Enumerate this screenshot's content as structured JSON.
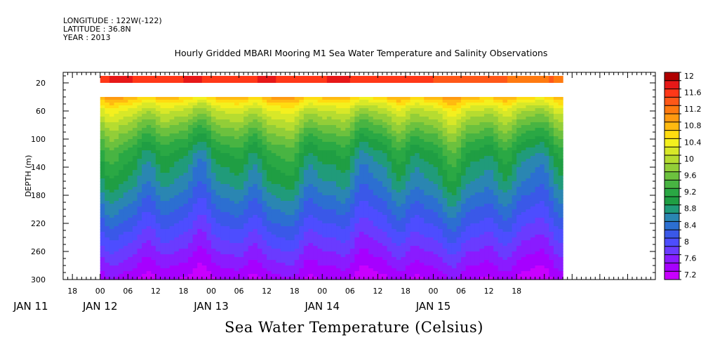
{
  "header": {
    "longitude": "LONGITUDE : 122W(-122)",
    "latitude": "LATITUDE : 36.8N",
    "year": "YEAR : 2013"
  },
  "chart_data": {
    "type": "heatmap",
    "title": "Hourly Gridded MBARI Mooring M1 Sea Water Temperature and Salinity Observations",
    "xlabel": "Sea Water Temperature (Celsius)",
    "ylabel": "DEPTH (m)",
    "y_axis": {
      "range": [
        300,
        5
      ],
      "inverted": true,
      "tick_labels": [
        20,
        60,
        100,
        140,
        180,
        220,
        260,
        300
      ],
      "minor_tick_step": 10
    },
    "x_axis": {
      "range_hours": [
        -8,
        120
      ],
      "hour_tick_labels": [
        "18",
        "00",
        "06",
        "12",
        "18",
        "00",
        "06",
        "12",
        "18",
        "00",
        "06",
        "12",
        "18",
        "00",
        "06",
        "12",
        "18"
      ],
      "hour_tick_values": [
        -6,
        0,
        6,
        12,
        18,
        24,
        30,
        36,
        42,
        48,
        54,
        60,
        66,
        72,
        78,
        84,
        90
      ],
      "date_labels": [
        "JAN 11",
        "JAN 12",
        "JAN 13",
        "JAN 14",
        "JAN 15"
      ],
      "date_label_positions_hours": [
        -15,
        0,
        24,
        48,
        72
      ]
    },
    "data_extent": {
      "time_start_hours": 0,
      "time_end_hours": 100,
      "depth_top": 10,
      "depth_upper_band_bottom": 20,
      "gap_depth_range": [
        20,
        40
      ],
      "depth_bottom": 300
    },
    "colorbar": {
      "levels": [
        7.2,
        7.4,
        7.6,
        7.8,
        8.0,
        8.2,
        8.4,
        8.6,
        8.8,
        9.0,
        9.2,
        9.4,
        9.6,
        9.8,
        10.0,
        10.2,
        10.4,
        10.6,
        10.8,
        11.0,
        11.2,
        11.4,
        11.6,
        11.8,
        12.0
      ],
      "tick_labels": [
        "7.2",
        "7.6",
        "8",
        "8.4",
        "8.8",
        "9.2",
        "9.6",
        "10",
        "10.4",
        "10.8",
        "11.2",
        "11.6",
        "12"
      ],
      "colors": [
        "#c800ff",
        "#a600ff",
        "#8a1bff",
        "#6a3bff",
        "#4d4dff",
        "#3a58e8",
        "#2c6fd1",
        "#2a86b2",
        "#209b7a",
        "#1f9e43",
        "#2aa844",
        "#48b442",
        "#6cc13e",
        "#92ce38",
        "#b6dc30",
        "#d8e828",
        "#f4f01e",
        "#ffdc10",
        "#ffba10",
        "#ff9a10",
        "#ff7a10",
        "#ff5818",
        "#ff3818",
        "#e61818",
        "#b00000"
      ]
    },
    "profile": {
      "depths": [
        10,
        40,
        50,
        60,
        80,
        100,
        120,
        140,
        160,
        180,
        200,
        220,
        240,
        260,
        280,
        300
      ],
      "temperature": [
        11.9,
        10.9,
        10.5,
        10.2,
        9.8,
        9.45,
        9.15,
        8.95,
        8.8,
        8.6,
        8.4,
        8.2,
        8.0,
        7.8,
        7.6,
        7.4
      ]
    }
  }
}
